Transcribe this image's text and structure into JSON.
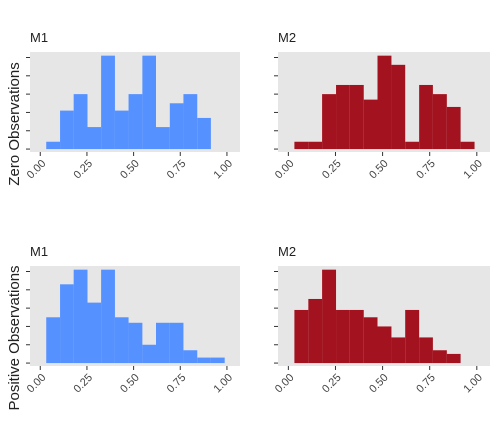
{
  "chart_data": [
    {
      "type": "histogram",
      "title": "M1",
      "ylabel": "Zero Observations",
      "color": "#5591ff",
      "bins": [
        0.032,
        0.106,
        0.179,
        0.253,
        0.326,
        0.4,
        0.473,
        0.547,
        0.62,
        0.694,
        0.767,
        0.841,
        0.914
      ],
      "values": [
        0.4,
        2.1,
        3,
        1.2,
        5.1,
        2.1,
        3,
        5.1,
        1.2,
        2.5,
        3,
        1.7
      ],
      "xlim": [
        -0.055,
        1.07
      ],
      "ylim": [
        -0.16,
        5.3
      ],
      "xticks": [
        {
          "value": 0,
          "label": "0.00"
        },
        {
          "value": 0.25,
          "label": "0.25"
        },
        {
          "value": 0.5,
          "label": "0.50"
        },
        {
          "value": 0.75,
          "label": "0.75"
        },
        {
          "value": 1,
          "label": "1.00"
        }
      ],
      "yticks": [
        0,
        1,
        2,
        3,
        4,
        5
      ]
    },
    {
      "type": "histogram",
      "title": "M2",
      "color": "#a3131f",
      "bins": [
        0.032,
        0.106,
        0.179,
        0.253,
        0.326,
        0.4,
        0.473,
        0.547,
        0.62,
        0.694,
        0.767,
        0.841,
        0.914,
        0.988
      ],
      "values": [
        0.4,
        0.4,
        3,
        3.5,
        3.5,
        2.7,
        5.1,
        4.6,
        0.4,
        3.5,
        3,
        2.3,
        0.4
      ],
      "xlim": [
        -0.055,
        1.07
      ],
      "ylim": [
        -0.16,
        5.3
      ],
      "xticks": [
        {
          "value": 0,
          "label": "0.00"
        },
        {
          "value": 0.25,
          "label": "0.25"
        },
        {
          "value": 0.5,
          "label": "0.50"
        },
        {
          "value": 0.75,
          "label": "0.75"
        },
        {
          "value": 1,
          "label": "1.00"
        }
      ],
      "yticks": [
        0,
        1,
        2,
        3,
        4,
        5
      ]
    },
    {
      "type": "histogram",
      "title": "M1",
      "ylabel": "Positive Observations",
      "color": "#5591ff",
      "bins": [
        0.032,
        0.106,
        0.179,
        0.253,
        0.326,
        0.4,
        0.473,
        0.547,
        0.62,
        0.694,
        0.767,
        0.841,
        0.914,
        0.988
      ],
      "values": [
        2.5,
        4.3,
        5.1,
        3.3,
        5.1,
        2.5,
        2.2,
        1,
        2.2,
        2.2,
        0.7,
        0.3,
        0.3
      ],
      "xlim": [
        -0.055,
        1.07
      ],
      "ylim": [
        -0.16,
        5.3
      ],
      "xticks": [
        {
          "value": 0,
          "label": "0.00"
        },
        {
          "value": 0.25,
          "label": "0.25"
        },
        {
          "value": 0.5,
          "label": "0.50"
        },
        {
          "value": 0.75,
          "label": "0.75"
        },
        {
          "value": 1,
          "label": "1.00"
        }
      ],
      "yticks": [
        0,
        1,
        2,
        3,
        4,
        5
      ]
    },
    {
      "type": "histogram",
      "title": "M2",
      "color": "#a3131f",
      "bins": [
        0.032,
        0.106,
        0.179,
        0.253,
        0.326,
        0.4,
        0.473,
        0.547,
        0.62,
        0.694,
        0.767,
        0.841,
        0.914
      ],
      "values": [
        2.9,
        3.5,
        5.1,
        2.9,
        2.9,
        2.5,
        2,
        1.4,
        2.9,
        1.4,
        0.7,
        0.5
      ],
      "xlim": [
        -0.055,
        1.07
      ],
      "ylim": [
        -0.16,
        5.3
      ],
      "xticks": [
        {
          "value": 0,
          "label": "0.00"
        },
        {
          "value": 0.25,
          "label": "0.25"
        },
        {
          "value": 0.5,
          "label": "0.50"
        },
        {
          "value": 0.75,
          "label": "0.75"
        },
        {
          "value": 1,
          "label": "1.00"
        }
      ],
      "yticks": [
        0,
        1,
        2,
        3,
        4,
        5
      ]
    }
  ]
}
